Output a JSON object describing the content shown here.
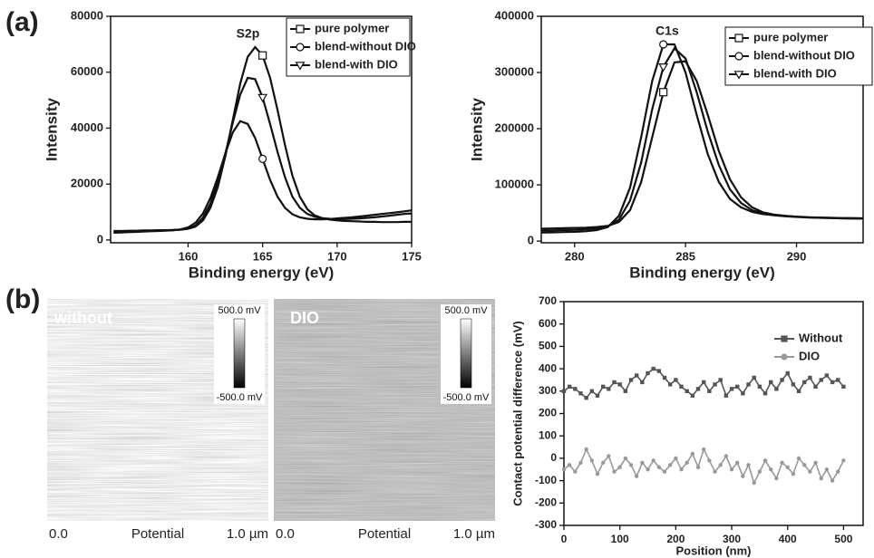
{
  "panel_labels": [
    "(a)",
    "(b)"
  ],
  "images": [
    {
      "label": "without",
      "scale_max": "500.0 mV",
      "scale_min": "-500.0 mV",
      "x_start": "0.0",
      "x_label": "Potential",
      "x_end": "1.0 µm"
    },
    {
      "label": "DIO",
      "scale_max": "500.0 mV",
      "scale_min": "-500.0 mV",
      "x_start": "0.0",
      "x_label": "Potential",
      "x_end": "1.0 µm"
    }
  ],
  "chart_data": [
    {
      "type": "line",
      "annotation": "S2p",
      "xlabel": "Binding energy (eV)",
      "ylabel": "Intensity",
      "xlim": [
        154.8,
        175
      ],
      "xticks": [
        160,
        165,
        170,
        175
      ],
      "ylim": [
        -1000,
        80000
      ],
      "yticks": [
        0,
        20000,
        40000,
        60000,
        80000
      ],
      "legend": "upper right",
      "legend_frame": true,
      "x": [
        155,
        155.5,
        156,
        156.5,
        157,
        157.5,
        158,
        158.5,
        159,
        159.5,
        160,
        160.5,
        161,
        161.5,
        162,
        162.5,
        163,
        163.5,
        164,
        164.5,
        165,
        165.5,
        166,
        166.5,
        167,
        167.5,
        168,
        168.5,
        169,
        169.5,
        170,
        170.5,
        171,
        171.5,
        172,
        172.5,
        173,
        173.5,
        174,
        174.5,
        175
      ],
      "series": [
        {
          "name": "pure polymer",
          "color": "#111111",
          "marker": "square",
          "values": [
            3200,
            3200,
            3300,
            3300,
            3400,
            3400,
            3500,
            3500,
            3600,
            3700,
            4000,
            4800,
            7000,
            11500,
            19000,
            30000,
            43000,
            56000,
            65500,
            69000,
            66000,
            58000,
            46500,
            34000,
            23000,
            15500,
            11000,
            8800,
            7800,
            7300,
            7000,
            6800,
            6700,
            6600,
            6500,
            6500,
            6400,
            6400,
            6400,
            6500,
            6500
          ]
        },
        {
          "name": "blend-without DIO",
          "color": "#111111",
          "marker": "circle",
          "values": [
            2600,
            2700,
            2800,
            2900,
            3000,
            3100,
            3200,
            3300,
            3500,
            3800,
            4500,
            6200,
            9500,
            15000,
            22500,
            31000,
            38500,
            42500,
            41500,
            36500,
            29000,
            21500,
            15500,
            11500,
            9200,
            8100,
            7600,
            7400,
            7400,
            7500,
            7700,
            7900,
            8100,
            8400,
            8700,
            9000,
            9300,
            9600,
            9900,
            10200,
            10600
          ]
        },
        {
          "name": "blend-with DIO",
          "color": "#111111",
          "marker": "triangle",
          "values": [
            2800,
            2900,
            3000,
            3050,
            3100,
            3200,
            3300,
            3400,
            3500,
            3700,
            4100,
            5200,
            8000,
            13000,
            21000,
            31000,
            42000,
            52000,
            58000,
            57500,
            51000,
            41500,
            31500,
            22500,
            15500,
            11500,
            9300,
            8300,
            7800,
            7600,
            7500,
            7500,
            7600,
            7700,
            7900,
            8100,
            8400,
            8700,
            9000,
            9300,
            9500
          ]
        }
      ]
    },
    {
      "type": "line",
      "annotation": "C1s",
      "xlabel": "Binding energy (eV)",
      "ylabel": "Intensity",
      "xlim": [
        278.5,
        293
      ],
      "xticks": [
        280,
        285,
        290
      ],
      "ylim": [
        -3000,
        400000
      ],
      "yticks": [
        0,
        100000,
        200000,
        300000,
        400000
      ],
      "legend": "upper right",
      "legend_frame": true,
      "x": [
        278.5,
        279,
        279.5,
        280,
        280.5,
        281,
        281.5,
        282,
        282.5,
        283,
        283.5,
        284,
        284.5,
        285,
        285.5,
        286,
        286.5,
        287,
        287.5,
        288,
        288.5,
        289,
        289.5,
        290,
        290.5,
        291,
        291.5,
        292,
        292.5,
        293
      ],
      "series": [
        {
          "name": "pure polymer",
          "color": "#111111",
          "marker": "square",
          "values": [
            22000,
            22500,
            23000,
            23500,
            24000,
            25000,
            27000,
            34000,
            55000,
            105000,
            185000,
            265000,
            318000,
            320000,
            285000,
            225000,
            160000,
            110000,
            78000,
            60000,
            51000,
            47000,
            45000,
            43500,
            42500,
            41500,
            41000,
            40500,
            40000,
            40000
          ]
        },
        {
          "name": "blend-without DIO",
          "color": "#111111",
          "marker": "circle",
          "values": [
            15000,
            15500,
            16000,
            16500,
            17500,
            19500,
            25000,
            45000,
            95000,
            185000,
            285000,
            350000,
            350000,
            300000,
            225000,
            155000,
            105000,
            75000,
            60000,
            52000,
            48000,
            46000,
            44500,
            43500,
            42500,
            42000,
            41500,
            41000,
            41000,
            40500
          ]
        },
        {
          "name": "blend-with DIO",
          "color": "#111111",
          "marker": "triangle",
          "values": [
            18500,
            19000,
            19500,
            20000,
            21000,
            22500,
            26000,
            38000,
            72000,
            140000,
            235000,
            310000,
            343000,
            325000,
            265000,
            195000,
            135000,
            92000,
            68000,
            55000,
            49000,
            46000,
            44000,
            43000,
            42000,
            41500,
            41000,
            40500,
            40500,
            40000
          ]
        }
      ]
    },
    {
      "type": "line",
      "xlabel": "Position (nm)",
      "ylabel": "Contact potential difference (mV)",
      "xlim": [
        0,
        535
      ],
      "xticks": [
        0,
        100,
        200,
        300,
        400,
        500
      ],
      "ylim": [
        -300,
        700
      ],
      "yticks": [
        -300,
        -200,
        -100,
        0,
        100,
        200,
        300,
        400,
        500,
        600,
        700
      ],
      "legend": "upper right",
      "legend_frame": false,
      "x": [
        0,
        10,
        20,
        30,
        40,
        50,
        60,
        70,
        80,
        90,
        100,
        110,
        120,
        130,
        140,
        150,
        160,
        170,
        180,
        190,
        200,
        210,
        220,
        230,
        240,
        250,
        260,
        270,
        280,
        290,
        300,
        310,
        320,
        330,
        340,
        350,
        360,
        370,
        380,
        390,
        400,
        410,
        420,
        430,
        440,
        450,
        460,
        470,
        480,
        490,
        500
      ],
      "series": [
        {
          "name": "Without",
          "color": "#555555",
          "marker": "square",
          "values": [
            300,
            320,
            310,
            290,
            270,
            300,
            280,
            320,
            310,
            340,
            330,
            300,
            350,
            370,
            340,
            380,
            400,
            390,
            360,
            330,
            350,
            320,
            300,
            280,
            310,
            340,
            300,
            330,
            350,
            280,
            310,
            320,
            290,
            330,
            360,
            320,
            290,
            340,
            310,
            350,
            380,
            330,
            300,
            340,
            360,
            320,
            350,
            370,
            340,
            350,
            320
          ]
        },
        {
          "name": "DIO",
          "color": "#999999",
          "marker": "circle",
          "values": [
            -50,
            -30,
            -60,
            -20,
            40,
            -10,
            -70,
            -20,
            10,
            -60,
            -40,
            0,
            -30,
            -80,
            -20,
            -50,
            -10,
            -40,
            -60,
            -30,
            0,
            -50,
            -20,
            20,
            -40,
            40,
            -10,
            -60,
            -30,
            10,
            -50,
            -20,
            -80,
            -30,
            -110,
            -60,
            -10,
            -50,
            -90,
            -20,
            -40,
            -70,
            0,
            -30,
            -60,
            -20,
            -90,
            -50,
            -100,
            -60,
            -10
          ]
        }
      ]
    }
  ]
}
